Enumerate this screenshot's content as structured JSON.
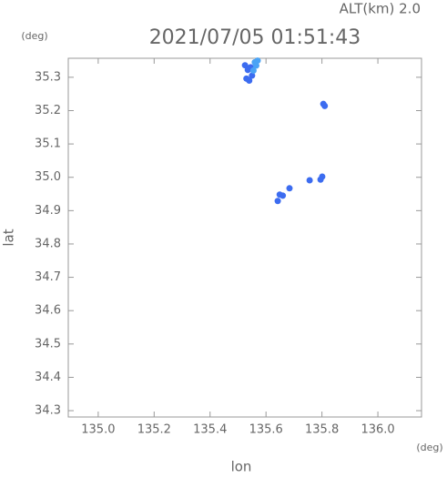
{
  "chart_data": {
    "type": "scatter",
    "title": "2021/07/05 01:51:43",
    "subtitle": "ALT(km) 2.0",
    "x_label": "lon",
    "y_label": "lat",
    "x_unit": "(deg)",
    "y_unit": "(deg)",
    "xlim": [
      134.893,
      136.156
    ],
    "ylim": [
      34.281,
      35.357
    ],
    "xticks": [
      {
        "value": 135,
        "label": "135.0"
      },
      135.2,
      135.4,
      135.6,
      135.8,
      {
        "value": 136,
        "label": "136.0"
      }
    ],
    "yticks": [
      34.3,
      34.4,
      34.5,
      34.6,
      34.7,
      34.8,
      34.9,
      {
        "value": 35,
        "label": "35.0"
      },
      35.1,
      35.2,
      35.3
    ],
    "grid": false,
    "series": [
      {
        "color": "#3c6cf0",
        "x": [
          135.525,
          135.535,
          135.545,
          135.53,
          135.54,
          135.55,
          135.805,
          135.81,
          135.756,
          135.795,
          135.801,
          135.649,
          135.684,
          135.642,
          135.66
        ],
        "y": [
          35.336,
          35.322,
          35.33,
          35.296,
          35.29,
          35.305,
          35.22,
          35.214,
          34.991,
          34.993,
          35.002,
          34.948,
          34.967,
          34.929,
          34.945
        ]
      },
      {
        "color": "#4aa3f5",
        "x": [
          135.56,
          135.57,
          135.565,
          135.555
        ],
        "y": [
          35.345,
          35.35,
          35.335,
          35.32
        ]
      }
    ]
  }
}
